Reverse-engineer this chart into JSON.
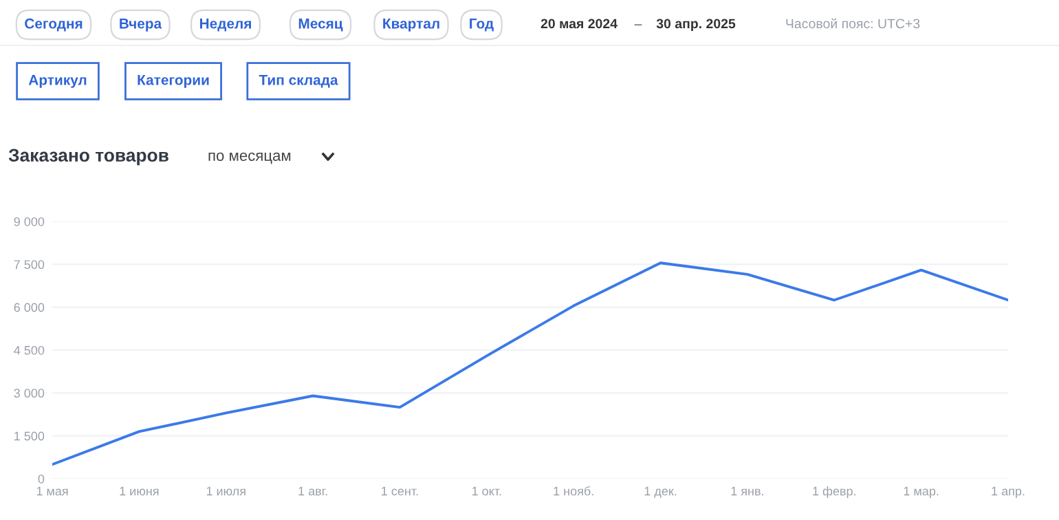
{
  "chart_data": {
    "type": "line",
    "title": "Заказано товаров",
    "subtitle": "по месяцам",
    "categories": [
      "1 мая",
      "1 июня",
      "1 июля",
      "1 авг.",
      "1 сент.",
      "1 окт.",
      "1 нояб.",
      "1 дек.",
      "1 янв.",
      "1 февр.",
      "1 мар.",
      "1 апр."
    ],
    "series": [
      {
        "color": "#3b7ae8",
        "values": [
          500,
          1650,
          2300,
          2900,
          2500,
          4300,
          6050,
          7550,
          7150,
          6250,
          7300,
          6250
        ]
      }
    ],
    "ylim": [
      0,
      9000
    ],
    "yticks": [
      {
        "value": 0,
        "label": "0"
      },
      {
        "value": 1500,
        "label": "1 500"
      },
      {
        "value": 3000,
        "label": "3 000"
      },
      {
        "value": 4500,
        "label": "4 500"
      },
      {
        "value": 6000,
        "label": "6 000"
      },
      {
        "value": 7500,
        "label": "7 500"
      },
      {
        "value": 9000,
        "label": "9 000"
      }
    ],
    "grid": "y",
    "legend": false,
    "marker": "none",
    "line_style": "solid",
    "annotations": [
      "Сегодня",
      "Вчера",
      "Неделя",
      "Месяц",
      "Квартал",
      "Год",
      "20 мая 2024",
      "–",
      "30 апр. 2025",
      "Часовой пояс: UTC+3",
      "Артикул",
      "Категории",
      "Тип склада"
    ]
  }
}
